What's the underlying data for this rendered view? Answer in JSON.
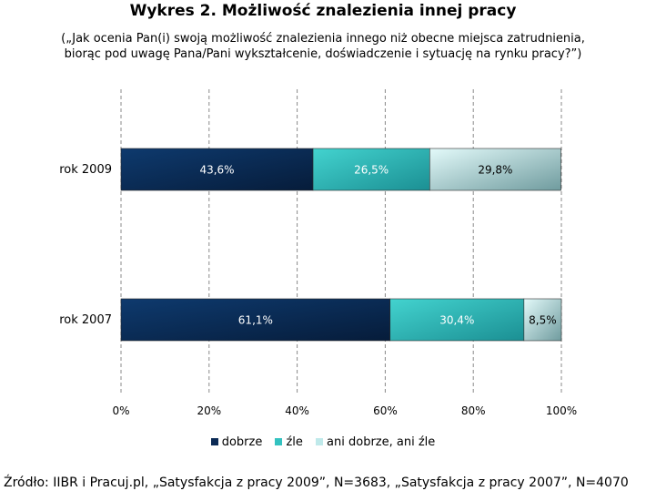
{
  "chart_data": {
    "type": "bar",
    "orientation": "horizontal",
    "stacked": true,
    "title": "Wykres 2. Możliwość znalezienia innej pracy",
    "subtitle_lines": [
      "(„Jak ocenia Pan(i) swoją możliwość znalezienia innego niż obecne miejsca zatrudnienia,",
      "biorąc pod uwagę Pana/Pani wykształcenie, doświadczenie i sytuację na rynku pracy?”)"
    ],
    "categories": [
      "rok 2009",
      "rok 2007"
    ],
    "series": [
      {
        "name": "dobrze",
        "values": [
          43.6,
          61.1
        ],
        "labels": [
          "43,6%",
          "61,1%"
        ],
        "color": "#0b2a55"
      },
      {
        "name": "źle",
        "values": [
          26.5,
          30.4
        ],
        "labels": [
          "26,5%",
          "30,4%"
        ],
        "color": "#33c2c0"
      },
      {
        "name": "ani dobrze, ani źle",
        "values": [
          29.8,
          8.5
        ],
        "labels": [
          "29,8%",
          "8,5%"
        ],
        "color": "#bfe9ea"
      }
    ],
    "xlim": [
      0,
      100
    ],
    "xticks": [
      0,
      20,
      40,
      60,
      80,
      100
    ],
    "xtick_labels": [
      "0%",
      "20%",
      "40%",
      "60%",
      "80%",
      "100%"
    ],
    "grid": true,
    "legend_position": "bottom",
    "source": "Źródło: IIBR i Pracuj.pl, „Satysfakcja z pracy 2009”, N=3683, „Satysfakcja z pracy 2007”, N=4070"
  }
}
